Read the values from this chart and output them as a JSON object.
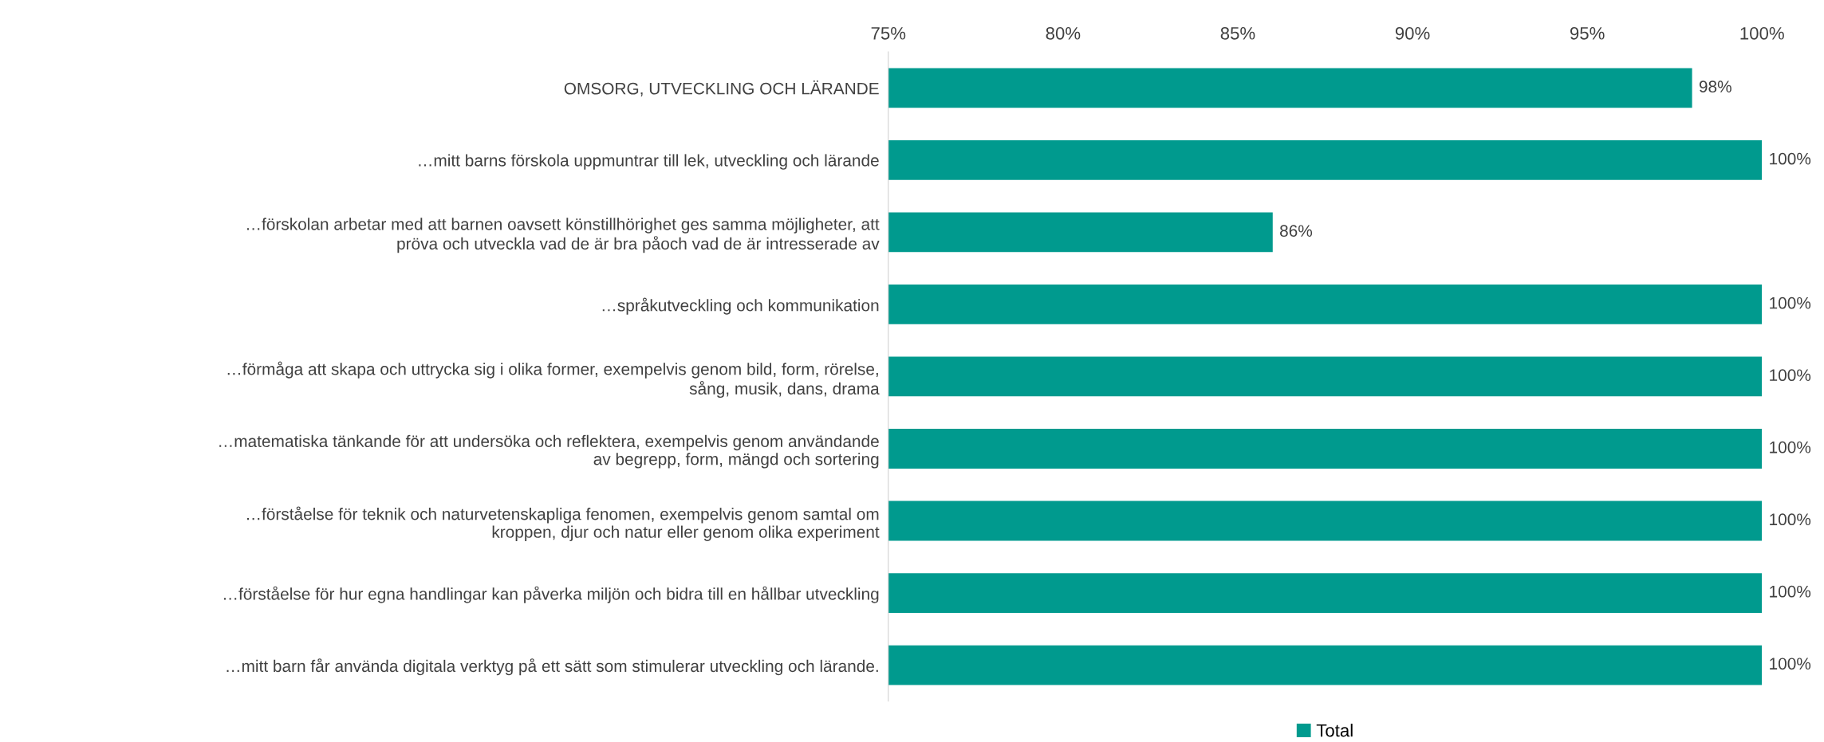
{
  "chart_data": {
    "type": "bar",
    "orientation": "horizontal",
    "categories": [
      "OMSORG, UTVECKLING OCH LÄRANDE",
      "…mitt barns förskola uppmuntrar till lek, utveckling och lärande",
      "…förskolan arbetar med att barnen oavsett könstillhörighet ges samma möjligheter, att\npröva och utveckla vad de är bra påoch vad de är intresserade av",
      "…språkutveckling och kommunikation",
      "…förmåga att skapa och uttrycka sig i olika former, exempelvis genom bild, form, rörelse,\nsång, musik, dans, drama",
      "…matematiska tänkande för att undersöka och reflektera, exempelvis genom användande\nav begrepp, form, mängd och sortering",
      "…förståelse för teknik och naturvetenskapliga fenomen, exempelvis genom samtal om\nkroppen, djur och natur eller genom olika experiment",
      "…förståelse för hur egna handlingar kan påverka miljön och bidra till en hållbar utveckling",
      "…mitt barn får använda digitala verktyg på ett sätt som stimulerar utveckling och lärande."
    ],
    "series": [
      {
        "name": "Total",
        "color": "#009a8e",
        "values": [
          98,
          100,
          86,
          100,
          100,
          100,
          100,
          100,
          100
        ],
        "value_labels": [
          "98%",
          "100%",
          "86%",
          "100%",
          "100%",
          "100%",
          "100%",
          "100%",
          "100%"
        ]
      }
    ],
    "xlim": [
      75,
      100
    ],
    "xticks": [
      {
        "value": 75,
        "label": "75%"
      },
      {
        "value": 80,
        "label": "80%"
      },
      {
        "value": 85,
        "label": "85%"
      },
      {
        "value": 90,
        "label": "90%"
      },
      {
        "value": 95,
        "label": "95%"
      },
      {
        "value": 100,
        "label": "100%"
      }
    ],
    "legend": "bottom",
    "grid": false
  }
}
